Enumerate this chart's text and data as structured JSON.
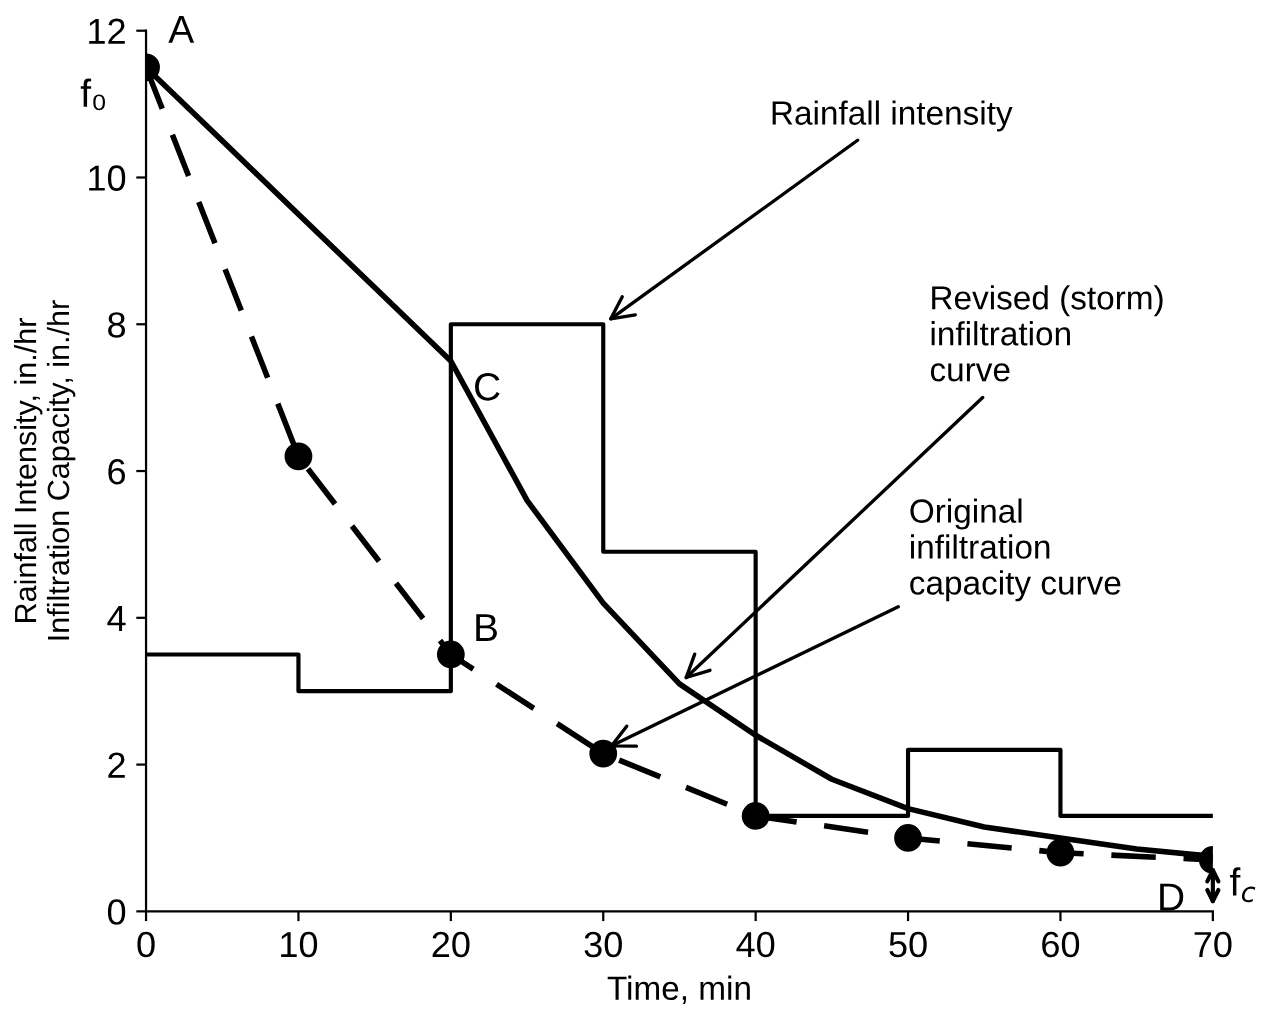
{
  "chart_data": {
    "type": "line",
    "xlabel": "Time, min",
    "ylabel": "Rainfall Intensity, in./hr\nInfiltration Capacity, in./hr",
    "xlim": [
      0,
      70
    ],
    "ylim": [
      0,
      12
    ],
    "xticks": [
      0,
      10,
      20,
      30,
      40,
      50,
      60,
      70
    ],
    "yticks": [
      0,
      2,
      4,
      6,
      8,
      10,
      12
    ],
    "grid": false,
    "series": [
      {
        "type": "step",
        "color": "#000000",
        "line_style": "solid",
        "x": [
          0,
          10,
          20,
          30,
          40,
          50,
          60,
          70
        ],
        "values": [
          3.5,
          3.0,
          8.0,
          4.9,
          1.3,
          2.2,
          1.3,
          1.3
        ]
      },
      {
        "color": "#000000",
        "line_style": "solid",
        "marker": "none",
        "x": [
          0,
          5,
          10,
          15,
          20,
          25,
          30,
          35,
          40,
          45,
          50,
          55,
          60,
          65,
          70
        ],
        "values": [
          11.5,
          10.5,
          9.5,
          8.5,
          7.5,
          5.6,
          4.2,
          3.1,
          2.4,
          1.8,
          1.4,
          1.15,
          1.0,
          0.85,
          0.75
        ]
      },
      {
        "color": "#000000",
        "line_style": "dashed",
        "marker": "circle",
        "x": [
          0,
          10,
          20,
          30,
          40,
          50,
          60,
          70
        ],
        "values": [
          11.5,
          6.2,
          3.5,
          2.15,
          1.3,
          1.0,
          0.8,
          0.7
        ]
      }
    ],
    "annotations": [
      {
        "text": "A",
        "x": 0,
        "y": 11.5
      },
      {
        "text": "f₀",
        "x": 0,
        "y": 11.5
      },
      {
        "text": "C",
        "x": 20,
        "y": 7.5
      },
      {
        "text": "B",
        "x": 20,
        "y": 3.5
      },
      {
        "text": "D",
        "x": 70,
        "y": 0.7
      },
      {
        "text": "f$_{c}$",
        "x": 70,
        "y": 0.7
      },
      {
        "text": "Rainfall intensity",
        "x": 30,
        "y": 8.0
      },
      {
        "text": "Revised (storm)\ninfiltration\ncurve",
        "x": 35,
        "y": 3.1
      },
      {
        "text": "Original\ninfiltration\ncapacity curve",
        "x": 30,
        "y": 2.2
      }
    ]
  }
}
